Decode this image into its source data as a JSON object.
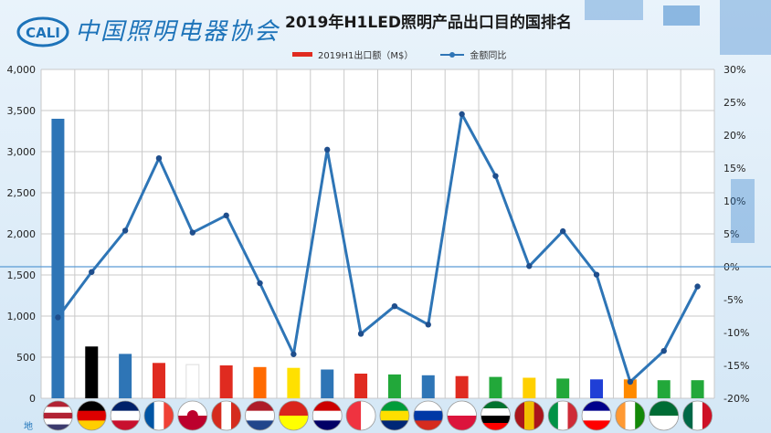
{
  "header": {
    "logo_badge": "CALI",
    "logo_text": "中国照明电器协会",
    "title": "2019年H1LED照明产品出口目的国排名"
  },
  "footer_text": "地",
  "colors": {
    "line": "#2e75b6",
    "grid": "#c9c9c9",
    "baseline": "#5a9bd5",
    "badge": "#1d73b9"
  },
  "chart_data": {
    "type": "bar+line",
    "title": "2019年H1LED照明产品出口目的国排名",
    "legend": [
      "2019H1出口额（M$）",
      "金额同比"
    ],
    "legend_position": "top",
    "grid": true,
    "y_left": {
      "range": [
        0,
        4000
      ],
      "ticks": [
        "0",
        "500",
        "1,000",
        "1,500",
        "2,000",
        "2,500",
        "3,000",
        "3,500",
        "4,000"
      ]
    },
    "y_right": {
      "range": [
        -20,
        30
      ],
      "ticks": [
        "-20%",
        "-15%",
        "-10%",
        "-5%",
        "0%",
        "5%",
        "10%",
        "15%",
        "20%",
        "25%",
        "30%"
      ]
    },
    "categories": [
      "美国",
      "德国",
      "英国",
      "法国",
      "日本",
      "加拿大",
      "荷兰",
      "越南",
      "马来西亚",
      "新加坡",
      "巴西",
      "俄罗斯",
      "波兰",
      "阿联酋",
      "西班牙",
      "意大利",
      "澳大利亚",
      "印度",
      "沙特阿拉伯",
      "墨西哥"
    ],
    "bar_series": {
      "name": "2019H1出口额（M$）",
      "values": [
        3400,
        630,
        540,
        430,
        410,
        400,
        380,
        370,
        350,
        300,
        290,
        280,
        270,
        260,
        250,
        240,
        230,
        230,
        220,
        220
      ],
      "colors": [
        "#2e75b6",
        "#000000",
        "#2e75b6",
        "#e02b20",
        "#ffffff",
        "#e02b20",
        "#ff6a00",
        "#ffe000",
        "#2e75b6",
        "#e02b20",
        "#22a83a",
        "#2e75b6",
        "#e02b20",
        "#22a83a",
        "#ffd000",
        "#22a83a",
        "#1f3fd6",
        "#ff8a00",
        "#22a83a",
        "#22a83a"
      ]
    },
    "line_series": {
      "name": "金额同比",
      "values": [
        -7.7,
        -0.8,
        5.5,
        16.5,
        5.2,
        7.8,
        -2.5,
        -13.3,
        17.8,
        -10.2,
        -6.0,
        -8.8,
        23.2,
        13.8,
        0.1,
        5.4,
        -1.2,
        -17.5,
        -12.8,
        -3.0
      ]
    }
  }
}
